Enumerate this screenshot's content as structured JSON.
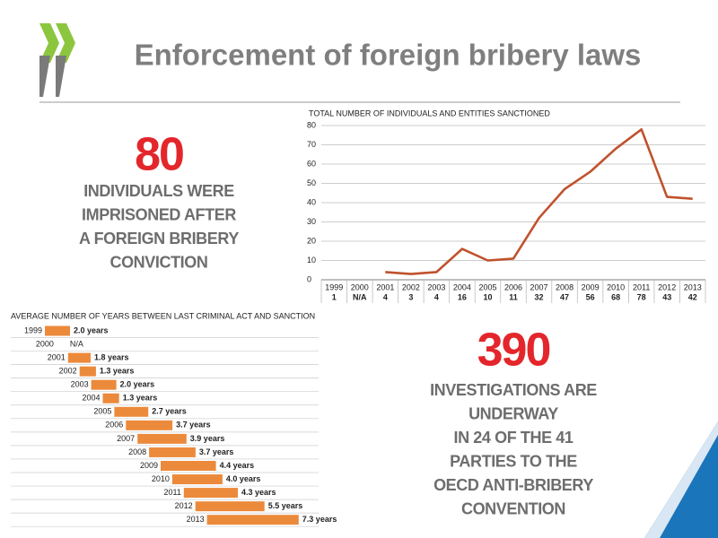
{
  "title": "Enforcement of foreign bribery laws",
  "stats": [
    {
      "number": "80",
      "lines": [
        "INDIVIDUALS WERE",
        "IMPRISONED AFTER",
        "A FOREIGN BRIBERY",
        "CONVICTION"
      ]
    },
    {
      "number": "390",
      "lines": [
        "INVESTIGATIONS ARE",
        "UNDERWAY",
        "IN 24 OF THE 41",
        "PARTIES TO THE",
        "OECD ANTI-BRIBERY",
        "CONVENTION"
      ]
    }
  ],
  "chart_data": [
    {
      "type": "line",
      "title": "TOTAL NUMBER OF INDIVIDUALS AND ENTITIES SANCTIONED",
      "categories": [
        "1999",
        "2000",
        "2001",
        "2002",
        "2003",
        "2004",
        "2005",
        "2006",
        "2007",
        "2008",
        "2009",
        "2010",
        "2011",
        "2012",
        "2013"
      ],
      "values": [
        1,
        null,
        4,
        3,
        4,
        16,
        10,
        11,
        32,
        47,
        56,
        68,
        78,
        43,
        42
      ],
      "value_labels": [
        "1",
        "N/A",
        "4",
        "3",
        "4",
        "16",
        "10",
        "11",
        "32",
        "47",
        "56",
        "68",
        "78",
        "43",
        "42"
      ],
      "color": "#c0522d",
      "ylim": [
        0,
        80
      ],
      "yticks": [
        0,
        10,
        20,
        30,
        40,
        50,
        60,
        70,
        80
      ],
      "grid": true
    },
    {
      "type": "bar",
      "orientation": "horizontal",
      "title": "AVERAGE NUMBER OF YEARS BETWEEN LAST CRIMINAL ACT AND SANCTION",
      "categories": [
        "1999",
        "2000",
        "2001",
        "2002",
        "2003",
        "2004",
        "2005",
        "2006",
        "2007",
        "2008",
        "2009",
        "2010",
        "2011",
        "2012",
        "2013"
      ],
      "values": [
        2.0,
        null,
        1.8,
        1.3,
        2.0,
        1.3,
        2.7,
        3.7,
        3.9,
        3.7,
        4.4,
        4.0,
        4.3,
        5.5,
        7.3
      ],
      "value_labels": [
        "2.0 years",
        "N/A",
        "1.8 years",
        "1.3 years",
        "2.0 years",
        "1.3 years",
        "2.7 years",
        "3.7 years",
        "3.9 years",
        "3.7 years",
        "4.4 years",
        "4.0 years",
        "4.3 years",
        "5.5 years",
        "7.3 years"
      ],
      "color": "#ec8a3c"
    }
  ]
}
